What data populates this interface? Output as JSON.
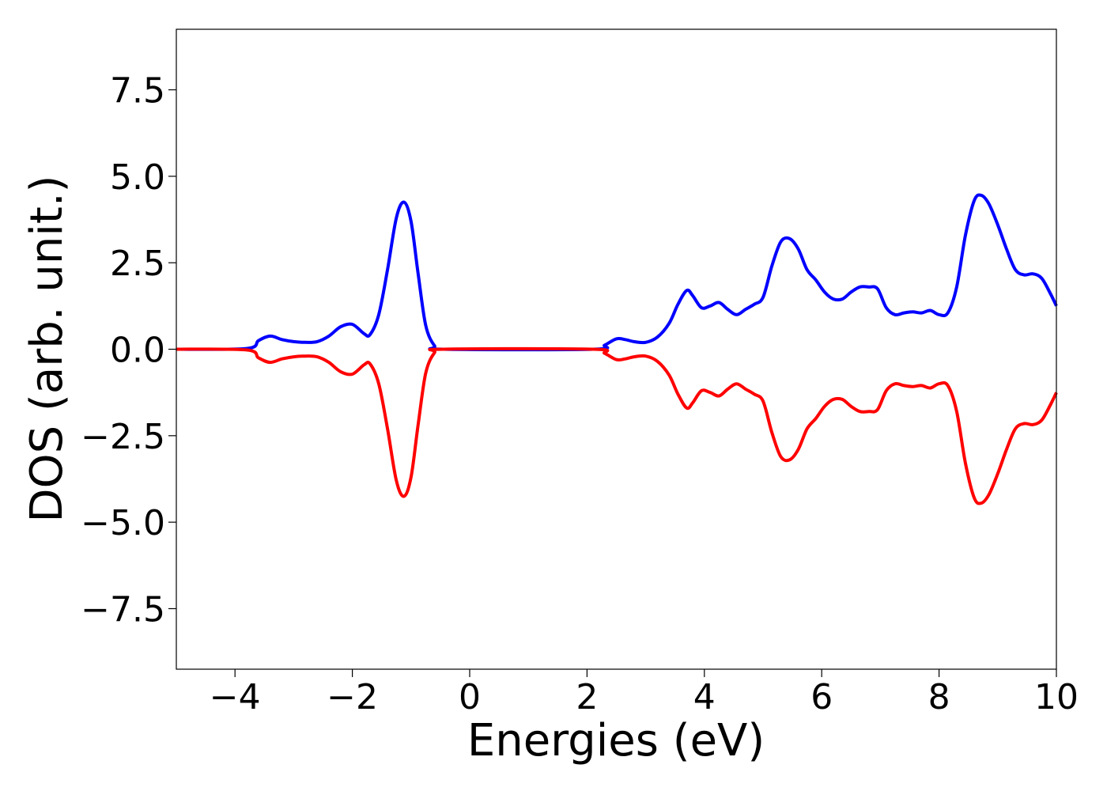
{
  "chart_data": {
    "type": "line",
    "title": "",
    "xlabel": "Energies (eV)",
    "ylabel": "DOS (arb. unit.)",
    "xlim": [
      -5,
      10
    ],
    "ylim": [
      -9.25,
      9.25
    ],
    "xticks": [
      -4,
      -2,
      0,
      2,
      4,
      6,
      8,
      10
    ],
    "xtick_labels": [
      "−4",
      "−2",
      "0",
      "2",
      "4",
      "6",
      "8",
      "10"
    ],
    "yticks": [
      7.5,
      5.0,
      2.5,
      0.0,
      -2.5,
      -5.0,
      -7.5
    ],
    "ytick_labels": [
      "7.5",
      "5.0",
      "2.5",
      "0.0",
      "−2.5",
      "−5.0",
      "−7.5"
    ],
    "grid": false,
    "legend": "none",
    "series": [
      {
        "color": "#0000ff",
        "points": [
          [
            -5,
            0
          ],
          [
            -3.8,
            0.02
          ],
          [
            -3.6,
            0.25
          ],
          [
            -3.4,
            0.38
          ],
          [
            -3.2,
            0.28
          ],
          [
            -3.0,
            0.22
          ],
          [
            -2.8,
            0.2
          ],
          [
            -2.6,
            0.22
          ],
          [
            -2.4,
            0.38
          ],
          [
            -2.2,
            0.65
          ],
          [
            -2.0,
            0.72
          ],
          [
            -1.8,
            0.45
          ],
          [
            -1.7,
            0.42
          ],
          [
            -1.55,
            1.0
          ],
          [
            -1.4,
            2.3
          ],
          [
            -1.25,
            3.8
          ],
          [
            -1.12,
            4.25
          ],
          [
            -1.0,
            3.7
          ],
          [
            -0.88,
            2.2
          ],
          [
            -0.75,
            0.7
          ],
          [
            -0.6,
            0.1
          ],
          [
            -0.45,
            0.0
          ],
          [
            2.1,
            0.0
          ],
          [
            2.3,
            0.12
          ],
          [
            2.5,
            0.3
          ],
          [
            2.65,
            0.28
          ],
          [
            2.8,
            0.22
          ],
          [
            3.0,
            0.2
          ],
          [
            3.2,
            0.35
          ],
          [
            3.4,
            0.75
          ],
          [
            3.55,
            1.3
          ],
          [
            3.7,
            1.7
          ],
          [
            3.8,
            1.55
          ],
          [
            3.95,
            1.2
          ],
          [
            4.1,
            1.25
          ],
          [
            4.25,
            1.35
          ],
          [
            4.4,
            1.15
          ],
          [
            4.55,
            1.0
          ],
          [
            4.7,
            1.15
          ],
          [
            4.85,
            1.3
          ],
          [
            5.0,
            1.5
          ],
          [
            5.15,
            2.4
          ],
          [
            5.3,
            3.1
          ],
          [
            5.45,
            3.2
          ],
          [
            5.6,
            2.9
          ],
          [
            5.75,
            2.3
          ],
          [
            5.9,
            2.0
          ],
          [
            6.05,
            1.65
          ],
          [
            6.2,
            1.45
          ],
          [
            6.35,
            1.45
          ],
          [
            6.5,
            1.65
          ],
          [
            6.65,
            1.8
          ],
          [
            6.8,
            1.8
          ],
          [
            6.95,
            1.75
          ],
          [
            7.1,
            1.2
          ],
          [
            7.25,
            1.0
          ],
          [
            7.4,
            1.05
          ],
          [
            7.55,
            1.08
          ],
          [
            7.7,
            1.05
          ],
          [
            7.85,
            1.12
          ],
          [
            8.0,
            1.0
          ],
          [
            8.15,
            1.05
          ],
          [
            8.3,
            1.8
          ],
          [
            8.45,
            3.3
          ],
          [
            8.6,
            4.3
          ],
          [
            8.72,
            4.45
          ],
          [
            8.85,
            4.2
          ],
          [
            9.0,
            3.6
          ],
          [
            9.15,
            2.9
          ],
          [
            9.3,
            2.3
          ],
          [
            9.45,
            2.15
          ],
          [
            9.6,
            2.18
          ],
          [
            9.75,
            2.05
          ],
          [
            9.9,
            1.6
          ],
          [
            10.0,
            1.25
          ]
        ]
      },
      {
        "color": "#ff0000",
        "points": [
          [
            -5,
            0
          ],
          [
            -3.8,
            -0.02
          ],
          [
            -3.6,
            -0.25
          ],
          [
            -3.4,
            -0.38
          ],
          [
            -3.2,
            -0.28
          ],
          [
            -3.0,
            -0.22
          ],
          [
            -2.8,
            -0.2
          ],
          [
            -2.6,
            -0.22
          ],
          [
            -2.4,
            -0.38
          ],
          [
            -2.2,
            -0.65
          ],
          [
            -2.0,
            -0.72
          ],
          [
            -1.8,
            -0.45
          ],
          [
            -1.7,
            -0.42
          ],
          [
            -1.55,
            -1.0
          ],
          [
            -1.4,
            -2.3
          ],
          [
            -1.25,
            -3.8
          ],
          [
            -1.12,
            -4.25
          ],
          [
            -1.0,
            -3.7
          ],
          [
            -0.88,
            -2.2
          ],
          [
            -0.75,
            -0.7
          ],
          [
            -0.6,
            -0.1
          ],
          [
            -0.45,
            0.0
          ],
          [
            2.1,
            0.0
          ],
          [
            2.3,
            -0.12
          ],
          [
            2.5,
            -0.3
          ],
          [
            2.65,
            -0.28
          ],
          [
            2.8,
            -0.22
          ],
          [
            3.0,
            -0.2
          ],
          [
            3.2,
            -0.35
          ],
          [
            3.4,
            -0.75
          ],
          [
            3.55,
            -1.3
          ],
          [
            3.7,
            -1.7
          ],
          [
            3.8,
            -1.55
          ],
          [
            3.95,
            -1.2
          ],
          [
            4.1,
            -1.25
          ],
          [
            4.25,
            -1.35
          ],
          [
            4.4,
            -1.15
          ],
          [
            4.55,
            -1.0
          ],
          [
            4.7,
            -1.15
          ],
          [
            4.85,
            -1.3
          ],
          [
            5.0,
            -1.5
          ],
          [
            5.15,
            -2.4
          ],
          [
            5.3,
            -3.1
          ],
          [
            5.45,
            -3.2
          ],
          [
            5.6,
            -2.9
          ],
          [
            5.75,
            -2.3
          ],
          [
            5.9,
            -2.0
          ],
          [
            6.05,
            -1.65
          ],
          [
            6.2,
            -1.45
          ],
          [
            6.35,
            -1.45
          ],
          [
            6.5,
            -1.65
          ],
          [
            6.65,
            -1.8
          ],
          [
            6.8,
            -1.8
          ],
          [
            6.95,
            -1.75
          ],
          [
            7.1,
            -1.2
          ],
          [
            7.25,
            -1.0
          ],
          [
            7.4,
            -1.05
          ],
          [
            7.55,
            -1.08
          ],
          [
            7.7,
            -1.05
          ],
          [
            7.85,
            -1.12
          ],
          [
            8.0,
            -1.0
          ],
          [
            8.15,
            -1.05
          ],
          [
            8.3,
            -1.8
          ],
          [
            8.45,
            -3.3
          ],
          [
            8.6,
            -4.3
          ],
          [
            8.72,
            -4.45
          ],
          [
            8.85,
            -4.2
          ],
          [
            9.0,
            -3.6
          ],
          [
            9.15,
            -2.9
          ],
          [
            9.3,
            -2.3
          ],
          [
            9.45,
            -2.15
          ],
          [
            9.6,
            -2.18
          ],
          [
            9.75,
            -2.05
          ],
          [
            9.9,
            -1.6
          ],
          [
            10.0,
            -1.25
          ]
        ]
      }
    ]
  }
}
